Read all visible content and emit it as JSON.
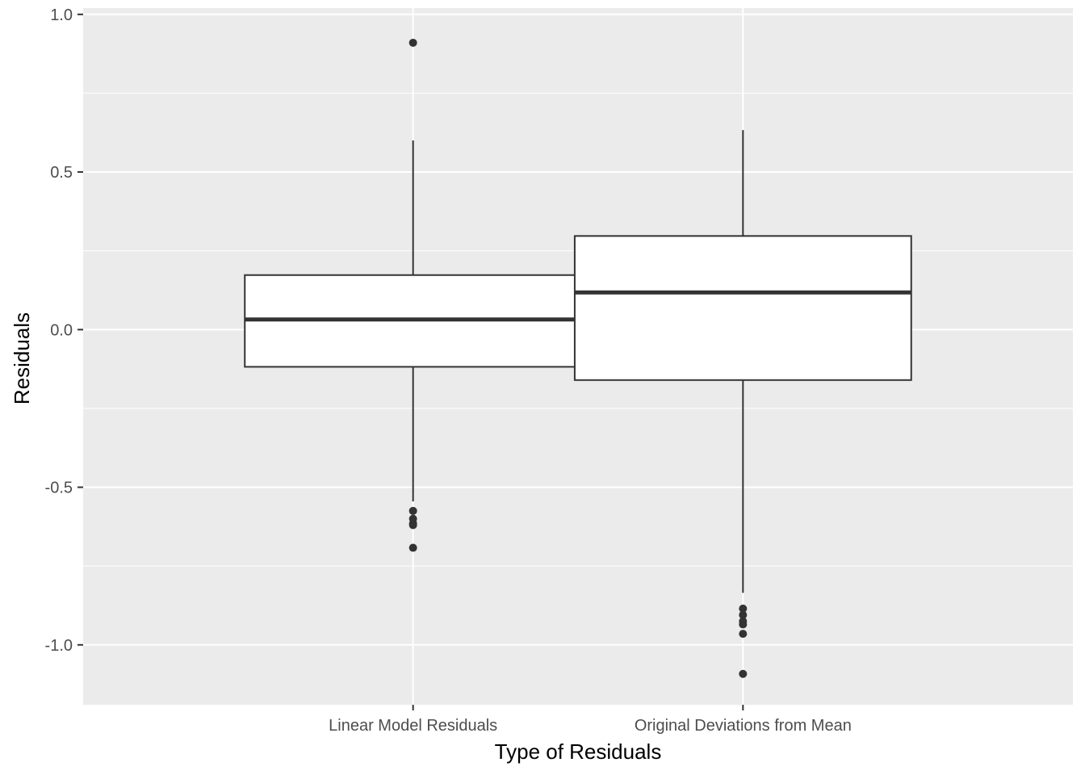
{
  "chart_data": {
    "type": "box",
    "title": "",
    "xlabel": "Type of Residuals",
    "ylabel": "Residuals",
    "ylim": [
      -1.19,
      1.02
    ],
    "yticks": [
      -1.0,
      -0.5,
      0.0,
      0.5,
      1.0
    ],
    "ytick_labels": [
      "-1.0",
      "-0.5",
      "0.0",
      "0.5",
      "1.0"
    ],
    "minor_grid_y": [
      -0.75,
      -0.25,
      0.25,
      0.75
    ],
    "grid": true,
    "legend": "none",
    "colors": {
      "panel_bg": "#ebebeb",
      "grid": "#ffffff",
      "box_fill": "#ffffff",
      "box_stroke": "#333333",
      "outlier": "#333333",
      "tick_label": "#4d4d4d"
    },
    "categories": [
      "Linear Model Residuals",
      "Original Deviations from Mean"
    ],
    "boxes": [
      {
        "category": "Linear Model Residuals",
        "whisker_low": -0.545,
        "q1": -0.118,
        "median": 0.032,
        "q3": 0.173,
        "whisker_high": 0.6,
        "outliers": [
          0.91,
          -0.575,
          -0.6,
          -0.615,
          -0.62,
          -0.692
        ]
      },
      {
        "category": "Original Deviations from Mean",
        "whisker_low": -0.835,
        "q1": -0.16,
        "median": 0.118,
        "q3": 0.297,
        "whisker_high": 0.633,
        "outliers": [
          -0.885,
          -0.905,
          -0.925,
          -0.935,
          -0.965,
          -1.092
        ]
      }
    ]
  }
}
